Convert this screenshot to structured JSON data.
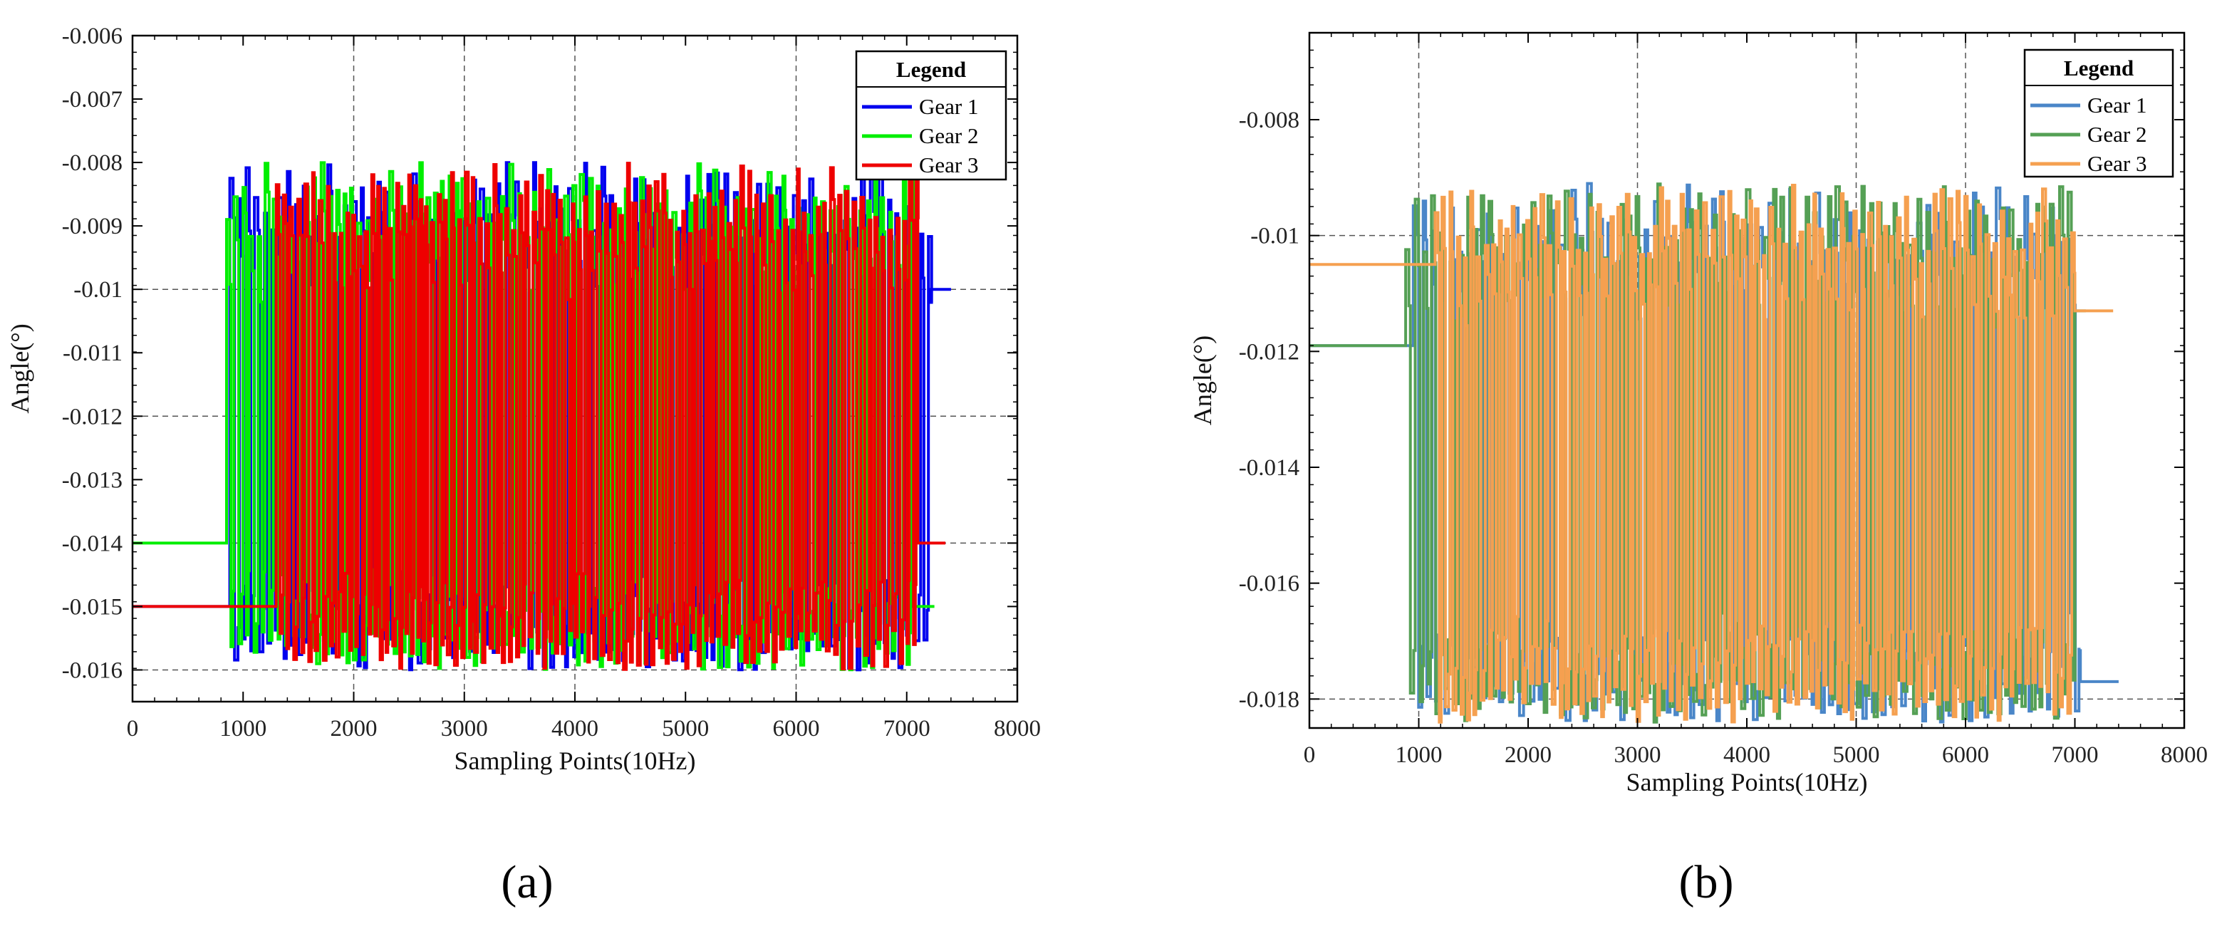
{
  "chart_data": [
    {
      "id": "a",
      "type": "line",
      "panel_label": "(a)",
      "xlabel": "Sampling Points(10Hz)",
      "ylabel": "Angle(°)",
      "xlim": [
        0,
        8000
      ],
      "ylim": [
        -0.0165,
        -0.006
      ],
      "xticks": [
        0,
        1000,
        2000,
        3000,
        4000,
        5000,
        6000,
        7000,
        8000
      ],
      "xtick_labels": [
        "0",
        "1000",
        "2000",
        "3000",
        "4000",
        "5000",
        "6000",
        "7000",
        "8000"
      ],
      "yticks": [
        -0.006,
        -0.007,
        -0.008,
        -0.009,
        -0.01,
        -0.011,
        -0.012,
        -0.013,
        -0.014,
        -0.015,
        -0.016
      ],
      "ytick_labels": [
        "-0.006",
        "-0.007",
        "-0.008",
        "-0.009",
        "-0.01",
        "-0.011",
        "-0.012",
        "-0.013",
        "-0.014",
        "-0.015",
        "-0.016"
      ],
      "hgrid": [
        -0.01,
        -0.012,
        -0.014,
        -0.016
      ],
      "vgrid": [
        2000,
        3000,
        4000,
        6000
      ],
      "legend": {
        "title": "Legend",
        "position": "top-right"
      },
      "series": [
        {
          "name": "Gear 1",
          "color": "#0000ee",
          "x_start": 0,
          "x_active_start": 880,
          "x_active_end": 7200,
          "x_end": 7400,
          "y_initial": -0.015,
          "y_final": -0.01,
          "y_min": -0.016,
          "y_max": -0.008,
          "period": 150,
          "phase": 0
        },
        {
          "name": "Gear 2",
          "color": "#00ee00",
          "x_start": 0,
          "x_active_start": 850,
          "x_active_end": 7050,
          "x_end": 7250,
          "y_initial": -0.014,
          "y_final": -0.015,
          "y_min": -0.016,
          "y_max": -0.008,
          "period": 140,
          "phase": 40
        },
        {
          "name": "Gear 3",
          "color": "#ee0000",
          "x_start": 0,
          "x_active_start": 1300,
          "x_active_end": 7100,
          "x_end": 7350,
          "y_initial": -0.015,
          "y_final": -0.014,
          "y_min": -0.016,
          "y_max": -0.008,
          "period": 120,
          "phase": 70
        }
      ]
    },
    {
      "id": "b",
      "type": "line",
      "panel_label": "(b)",
      "xlabel": "Sampling Points(10Hz)",
      "ylabel": "Angle(°)",
      "xlim": [
        0,
        8000
      ],
      "ylim": [
        -0.0185,
        -0.0065
      ],
      "xticks": [
        0,
        1000,
        2000,
        3000,
        4000,
        5000,
        6000,
        7000,
        8000
      ],
      "xtick_labels": [
        "0",
        "1000",
        "2000",
        "3000",
        "4000",
        "5000",
        "6000",
        "7000",
        "8000"
      ],
      "yticks": [
        -0.008,
        -0.01,
        -0.012,
        -0.014,
        -0.016,
        -0.018
      ],
      "ytick_labels": [
        "-0.008",
        "-0.01",
        "-0.012",
        "-0.014",
        "-0.016",
        "-0.018"
      ],
      "hgrid": [
        -0.01,
        -0.018
      ],
      "vgrid": [
        1000,
        3000,
        5000,
        6000
      ],
      "legend": {
        "title": "Legend",
        "position": "top-right"
      },
      "series": [
        {
          "name": "Gear 1",
          "color": "#4a86c8",
          "x_start": 0,
          "x_active_start": 950,
          "x_active_end": 7050,
          "x_end": 7400,
          "y_initial": -0.0119,
          "y_final": -0.0177,
          "y_min": -0.0184,
          "y_max": -0.0091,
          "period": 170,
          "phase": 0
        },
        {
          "name": "Gear 2",
          "color": "#55a055",
          "x_start": 0,
          "x_active_start": 880,
          "x_active_end": 7000,
          "x_end": 7100,
          "y_initial": -0.0119,
          "y_final": -0.0113,
          "y_min": -0.0184,
          "y_max": -0.0091,
          "period": 150,
          "phase": 50
        },
        {
          "name": "Gear 3",
          "color": "#f5a050",
          "x_start": 0,
          "x_active_start": 1150,
          "x_active_end": 7000,
          "x_end": 7350,
          "y_initial": -0.0105,
          "y_final": -0.0113,
          "y_min": -0.0184,
          "y_max": -0.0091,
          "period": 130,
          "phase": 90
        }
      ]
    }
  ]
}
